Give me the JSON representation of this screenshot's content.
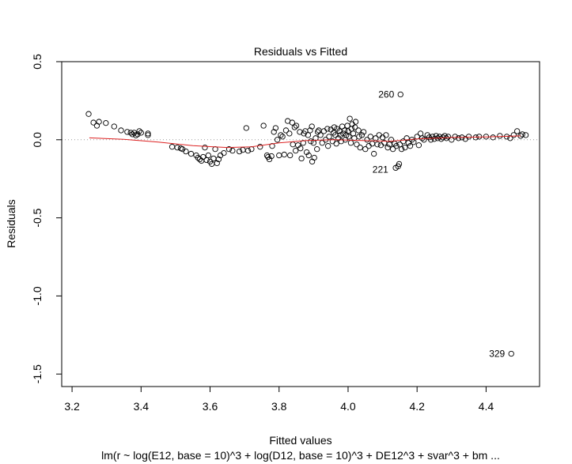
{
  "chart_data": {
    "type": "scatter",
    "title": "Residuals vs Fitted",
    "xlabel": "Fitted values",
    "ylabel": "Residuals",
    "subtitle": "lm(r ~ log(E12, base = 10)^3 + log(D12, base = 10)^3 + DE12^3 + svar^3 + bm ...",
    "xlim": [
      3.17,
      4.555
    ],
    "ylim": [
      -1.58,
      0.5
    ],
    "xticks": [
      3.2,
      3.4,
      3.6,
      3.8,
      4.0,
      4.2,
      4.4
    ],
    "xtick_labels": [
      "3.2",
      "3.4",
      "3.6",
      "3.8",
      "4.0",
      "4.2",
      "4.4"
    ],
    "yticks": [
      0.5,
      0.0,
      -0.5,
      -1.0,
      -1.5
    ],
    "ytick_labels": [
      "0.5",
      "0.0",
      "-0.5",
      "-1.0",
      "-1.5"
    ],
    "grid": false,
    "reference_line": {
      "y": 0,
      "style": "dotted",
      "color": "#999999"
    },
    "smoother": {
      "color": "#dd2222",
      "x": [
        3.25,
        3.35,
        3.45,
        3.55,
        3.65,
        3.72,
        3.8,
        3.88,
        3.96,
        4.04,
        4.12,
        4.2,
        4.3,
        4.4,
        4.5
      ],
      "y": [
        0.012,
        0.003,
        -0.015,
        -0.038,
        -0.05,
        -0.045,
        -0.02,
        -0.005,
        0.0,
        -0.005,
        -0.01,
        0.005,
        0.015,
        0.018,
        0.025
      ]
    },
    "labeled_points": [
      {
        "label": "260",
        "x": 4.152,
        "y": 0.29
      },
      {
        "label": "221",
        "x": 4.135,
        "y": -0.19
      },
      {
        "label": "329",
        "x": 4.473,
        "y": -1.37
      }
    ],
    "points": [
      [
        3.248,
        0.165
      ],
      [
        3.262,
        0.11
      ],
      [
        3.272,
        0.09
      ],
      [
        3.278,
        0.115
      ],
      [
        3.298,
        0.107
      ],
      [
        3.322,
        0.085
      ],
      [
        3.342,
        0.06
      ],
      [
        3.36,
        0.05
      ],
      [
        3.37,
        0.045
      ],
      [
        3.375,
        0.035
      ],
      [
        3.38,
        0.045
      ],
      [
        3.385,
        0.028
      ],
      [
        3.39,
        0.035
      ],
      [
        3.395,
        0.055
      ],
      [
        3.4,
        0.045
      ],
      [
        3.42,
        0.03
      ],
      [
        3.42,
        0.04
      ],
      [
        3.49,
        -0.045
      ],
      [
        3.505,
        -0.05
      ],
      [
        3.515,
        -0.055
      ],
      [
        3.52,
        -0.06
      ],
      [
        3.53,
        -0.075
      ],
      [
        3.545,
        -0.09
      ],
      [
        3.56,
        -0.1
      ],
      [
        3.565,
        -0.115
      ],
      [
        3.57,
        -0.125
      ],
      [
        3.575,
        -0.135
      ],
      [
        3.58,
        -0.11
      ],
      [
        3.585,
        -0.05
      ],
      [
        3.59,
        -0.13
      ],
      [
        3.595,
        -0.1
      ],
      [
        3.6,
        -0.14
      ],
      [
        3.605,
        -0.155
      ],
      [
        3.61,
        -0.12
      ],
      [
        3.615,
        -0.06
      ],
      [
        3.62,
        -0.15
      ],
      [
        3.625,
        -0.125
      ],
      [
        3.63,
        -0.1
      ],
      [
        3.64,
        -0.085
      ],
      [
        3.655,
        -0.06
      ],
      [
        3.665,
        -0.07
      ],
      [
        3.685,
        -0.075
      ],
      [
        3.695,
        -0.065
      ],
      [
        3.705,
        0.075
      ],
      [
        3.71,
        -0.07
      ],
      [
        3.72,
        -0.06
      ],
      [
        3.745,
        -0.045
      ],
      [
        3.755,
        0.09
      ],
      [
        3.765,
        -0.1
      ],
      [
        3.768,
        -0.11
      ],
      [
        3.772,
        -0.125
      ],
      [
        3.778,
        -0.105
      ],
      [
        3.78,
        -0.04
      ],
      [
        3.785,
        0.05
      ],
      [
        3.79,
        0.075
      ],
      [
        3.795,
        0.0
      ],
      [
        3.8,
        -0.1
      ],
      [
        3.805,
        0.03
      ],
      [
        3.81,
        0.02
      ],
      [
        3.815,
        -0.095
      ],
      [
        3.82,
        0.06
      ],
      [
        3.825,
        0.12
      ],
      [
        3.83,
        0.04
      ],
      [
        3.832,
        -0.1
      ],
      [
        3.838,
        0.11
      ],
      [
        3.84,
        -0.03
      ],
      [
        3.845,
        0.08
      ],
      [
        3.848,
        -0.07
      ],
      [
        3.85,
        0.09
      ],
      [
        3.855,
        -0.035
      ],
      [
        3.86,
        0.05
      ],
      [
        3.862,
        -0.055
      ],
      [
        3.865,
        -0.12
      ],
      [
        3.87,
        -0.02
      ],
      [
        3.872,
        0.04
      ],
      [
        3.876,
        0.055
      ],
      [
        3.88,
        -0.08
      ],
      [
        3.884,
        0.03
      ],
      [
        3.886,
        -0.1
      ],
      [
        3.89,
        0.06
      ],
      [
        3.892,
        -0.01
      ],
      [
        3.895,
        0.085
      ],
      [
        3.896,
        -0.14
      ],
      [
        3.9,
        -0.02
      ],
      [
        3.902,
        -0.115
      ],
      [
        3.906,
        0.01
      ],
      [
        3.91,
        -0.06
      ],
      [
        3.912,
        0.05
      ],
      [
        3.915,
        0.06
      ],
      [
        3.92,
        0.03
      ],
      [
        3.925,
        -0.02
      ],
      [
        3.93,
        0.055
      ],
      [
        3.935,
        0.0
      ],
      [
        3.94,
        0.07
      ],
      [
        3.942,
        -0.04
      ],
      [
        3.945,
        0.02
      ],
      [
        3.95,
        0.065
      ],
      [
        3.955,
        -0.01
      ],
      [
        3.958,
        0.045
      ],
      [
        3.96,
        0.08
      ],
      [
        3.963,
        0.03
      ],
      [
        3.966,
        -0.025
      ],
      [
        3.968,
        0.07
      ],
      [
        3.972,
        0.01
      ],
      [
        3.975,
        0.055
      ],
      [
        3.978,
        0.03
      ],
      [
        3.98,
        -0.01
      ],
      [
        3.983,
        0.085
      ],
      [
        3.986,
        0.04
      ],
      [
        3.99,
        0.06
      ],
      [
        3.992,
        0.0
      ],
      [
        3.995,
        0.03
      ],
      [
        3.998,
        0.09
      ],
      [
        4.0,
        0.055
      ],
      [
        4.002,
        0.02
      ],
      [
        4.005,
        0.135
      ],
      [
        4.008,
        -0.02
      ],
      [
        4.01,
        0.07
      ],
      [
        4.012,
        0.1
      ],
      [
        4.015,
        0.04
      ],
      [
        4.018,
        0.01
      ],
      [
        4.02,
        0.08
      ],
      [
        4.022,
        0.115
      ],
      [
        4.025,
        -0.03
      ],
      [
        4.03,
        0.06
      ],
      [
        4.032,
        0.02
      ],
      [
        4.035,
        -0.05
      ],
      [
        4.04,
        0.03
      ],
      [
        4.045,
        0.05
      ],
      [
        4.05,
        -0.06
      ],
      [
        4.055,
        0.0
      ],
      [
        4.06,
        -0.04
      ],
      [
        4.065,
        0.02
      ],
      [
        4.07,
        -0.025
      ],
      [
        4.075,
        -0.09
      ],
      [
        4.08,
        0.01
      ],
      [
        4.085,
        -0.03
      ],
      [
        4.09,
        0.03
      ],
      [
        4.095,
        -0.035
      ],
      [
        4.1,
        0.015
      ],
      [
        4.105,
        -0.02
      ],
      [
        4.11,
        0.03
      ],
      [
        4.115,
        -0.05
      ],
      [
        4.12,
        -0.03
      ],
      [
        4.125,
        0.0
      ],
      [
        4.13,
        -0.06
      ],
      [
        4.135,
        -0.025
      ],
      [
        4.138,
        -0.18
      ],
      [
        4.14,
        -0.04
      ],
      [
        4.145,
        -0.17
      ],
      [
        4.148,
        -0.155
      ],
      [
        4.15,
        -0.03
      ],
      [
        4.155,
        -0.06
      ],
      [
        4.16,
        -0.01
      ],
      [
        4.165,
        -0.05
      ],
      [
        4.17,
        0.01
      ],
      [
        4.175,
        -0.02
      ],
      [
        4.18,
        -0.04
      ],
      [
        4.185,
        0.0
      ],
      [
        4.19,
        -0.015
      ],
      [
        4.2,
        0.02
      ],
      [
        4.205,
        -0.035
      ],
      [
        4.21,
        0.04
      ],
      [
        4.215,
        0.01
      ],
      [
        4.22,
        0.0
      ],
      [
        4.23,
        0.03
      ],
      [
        4.235,
        0.015
      ],
      [
        4.24,
        0.0
      ],
      [
        4.245,
        0.02
      ],
      [
        4.25,
        0.005
      ],
      [
        4.255,
        0.025
      ],
      [
        4.26,
        0.01
      ],
      [
        4.265,
        0.02
      ],
      [
        4.27,
        0.005
      ],
      [
        4.275,
        0.015
      ],
      [
        4.28,
        0.025
      ],
      [
        4.285,
        0.01
      ],
      [
        4.29,
        0.02
      ],
      [
        4.3,
        0.0
      ],
      [
        4.31,
        0.02
      ],
      [
        4.32,
        0.01
      ],
      [
        4.33,
        0.015
      ],
      [
        4.34,
        0.005
      ],
      [
        4.35,
        0.02
      ],
      [
        4.37,
        0.015
      ],
      [
        4.38,
        0.02
      ],
      [
        4.4,
        0.02
      ],
      [
        4.42,
        0.015
      ],
      [
        4.44,
        0.025
      ],
      [
        4.46,
        0.02
      ],
      [
        4.47,
        0.01
      ],
      [
        4.48,
        0.03
      ],
      [
        4.49,
        0.055
      ],
      [
        4.5,
        0.025
      ],
      [
        4.505,
        0.035
      ],
      [
        4.515,
        0.03
      ],
      [
        4.152,
        0.29
      ],
      [
        4.473,
        -1.37
      ]
    ]
  }
}
